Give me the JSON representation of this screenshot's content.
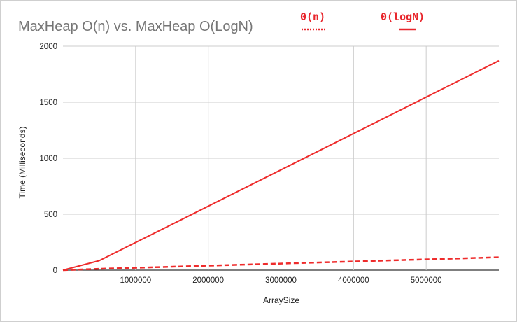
{
  "chart_data": {
    "type": "line",
    "title": "MaxHeap O(n) vs. MaxHeap O(LogN)",
    "xlabel": "ArraySize",
    "ylabel": "Time (Milliseconds)",
    "xlim": [
      0,
      6000000
    ],
    "ylim": [
      0,
      2000
    ],
    "xticks": [
      1000000,
      2000000,
      3000000,
      4000000,
      5000000
    ],
    "xtick_labels": [
      "1000000",
      "2000000",
      "3000000",
      "4000000",
      "5000000"
    ],
    "yticks": [
      0,
      500,
      1000,
      1500,
      2000
    ],
    "ytick_labels": [
      "0",
      "500",
      "1000",
      "1500",
      "2000"
    ],
    "grid": true,
    "legend_position": "top-right",
    "legend": [
      {
        "label": "0(n)",
        "style": "dotted",
        "color": "#e8262c"
      },
      {
        "label": "0(logN)",
        "style": "solid",
        "color": "#e8262c"
      }
    ],
    "series": [
      {
        "name": "0(n)",
        "style": "solid",
        "color": "#ee2b2b",
        "x": [
          0,
          500000,
          6000000
        ],
        "y": [
          0,
          85,
          1870
        ]
      },
      {
        "name": "0(logN)",
        "style": "dashed",
        "color": "#ee2b2b",
        "x": [
          0,
          500000,
          6000000
        ],
        "y": [
          0,
          12,
          115
        ]
      }
    ]
  }
}
